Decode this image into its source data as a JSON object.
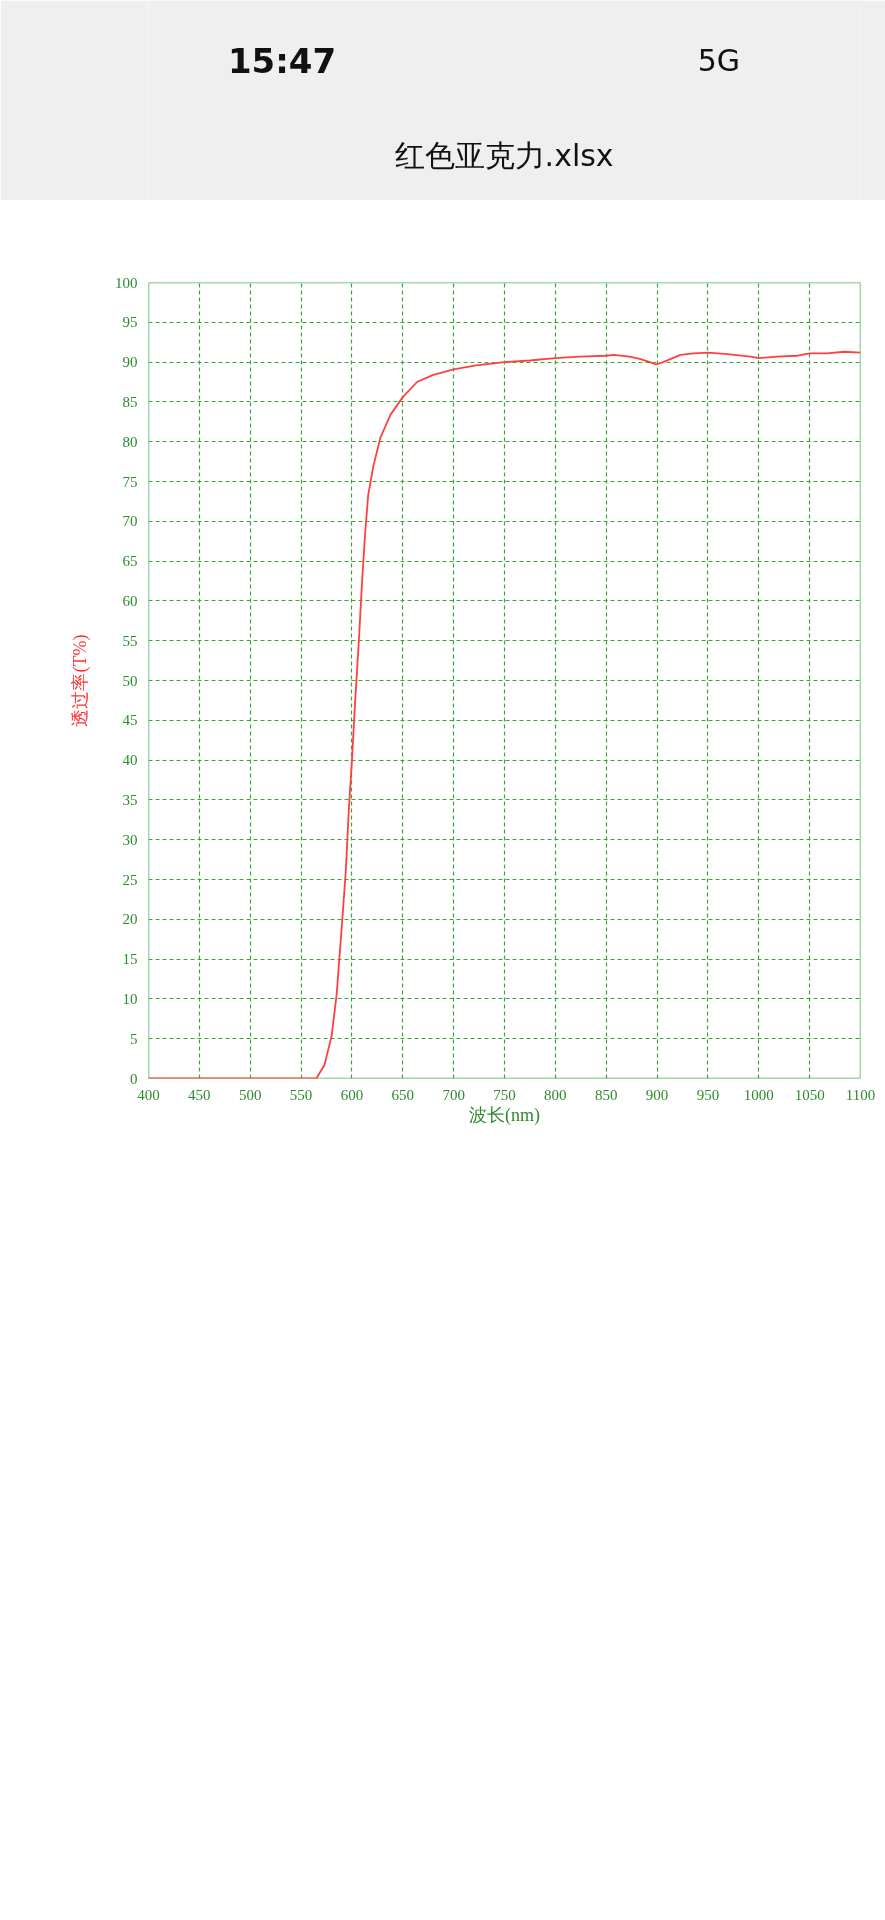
{
  "chart_data": {
    "type": "line",
    "title": "红色亚克力.xlsx",
    "annotations": [
      "15:47",
      "5G"
    ],
    "xlabel": "波长(nm)",
    "ylabel": "透过率(T%)",
    "x": [
      400,
      450,
      500,
      550,
      565,
      573,
      580,
      585,
      590,
      594,
      597,
      600,
      603,
      607,
      610,
      613,
      616,
      621,
      628,
      638,
      650,
      664,
      680,
      700,
      722,
      750,
      775,
      800,
      824,
      850,
      857,
      873,
      883,
      893,
      899,
      906,
      923,
      936,
      950,
      969,
      992,
      1000,
      1018,
      1038,
      1050,
      1067,
      1084,
      1100
    ],
    "series": [
      {
        "color": "#ff4040",
        "values": [
          0,
          0,
          0,
          0,
          0,
          1.7,
          5.3,
          10.6,
          19.0,
          26.1,
          33.9,
          39.9,
          47.0,
          55.4,
          62.5,
          68.5,
          73.3,
          76.9,
          80.5,
          83.4,
          85.6,
          87.5,
          88.4,
          89.1,
          89.6,
          90.0,
          90.2,
          90.5,
          90.7,
          90.8,
          90.9,
          90.7,
          90.4,
          90.0,
          89.7,
          90.0,
          90.9,
          91.1,
          91.2,
          91.0,
          90.7,
          90.5,
          90.7,
          90.8,
          91.1,
          91.1,
          91.3,
          91.2
        ]
      }
    ],
    "xlim": [
      400,
      1100
    ],
    "ylim": [
      0,
      100
    ],
    "xticks": [
      400,
      450,
      500,
      550,
      600,
      650,
      700,
      750,
      800,
      850,
      900,
      950,
      1000,
      1050,
      1100
    ],
    "yticks": [
      0,
      5,
      10,
      15,
      20,
      25,
      30,
      35,
      40,
      45,
      50,
      55,
      60,
      65,
      70,
      75,
      80,
      85,
      90,
      95,
      100
    ],
    "grid": true
  }
}
